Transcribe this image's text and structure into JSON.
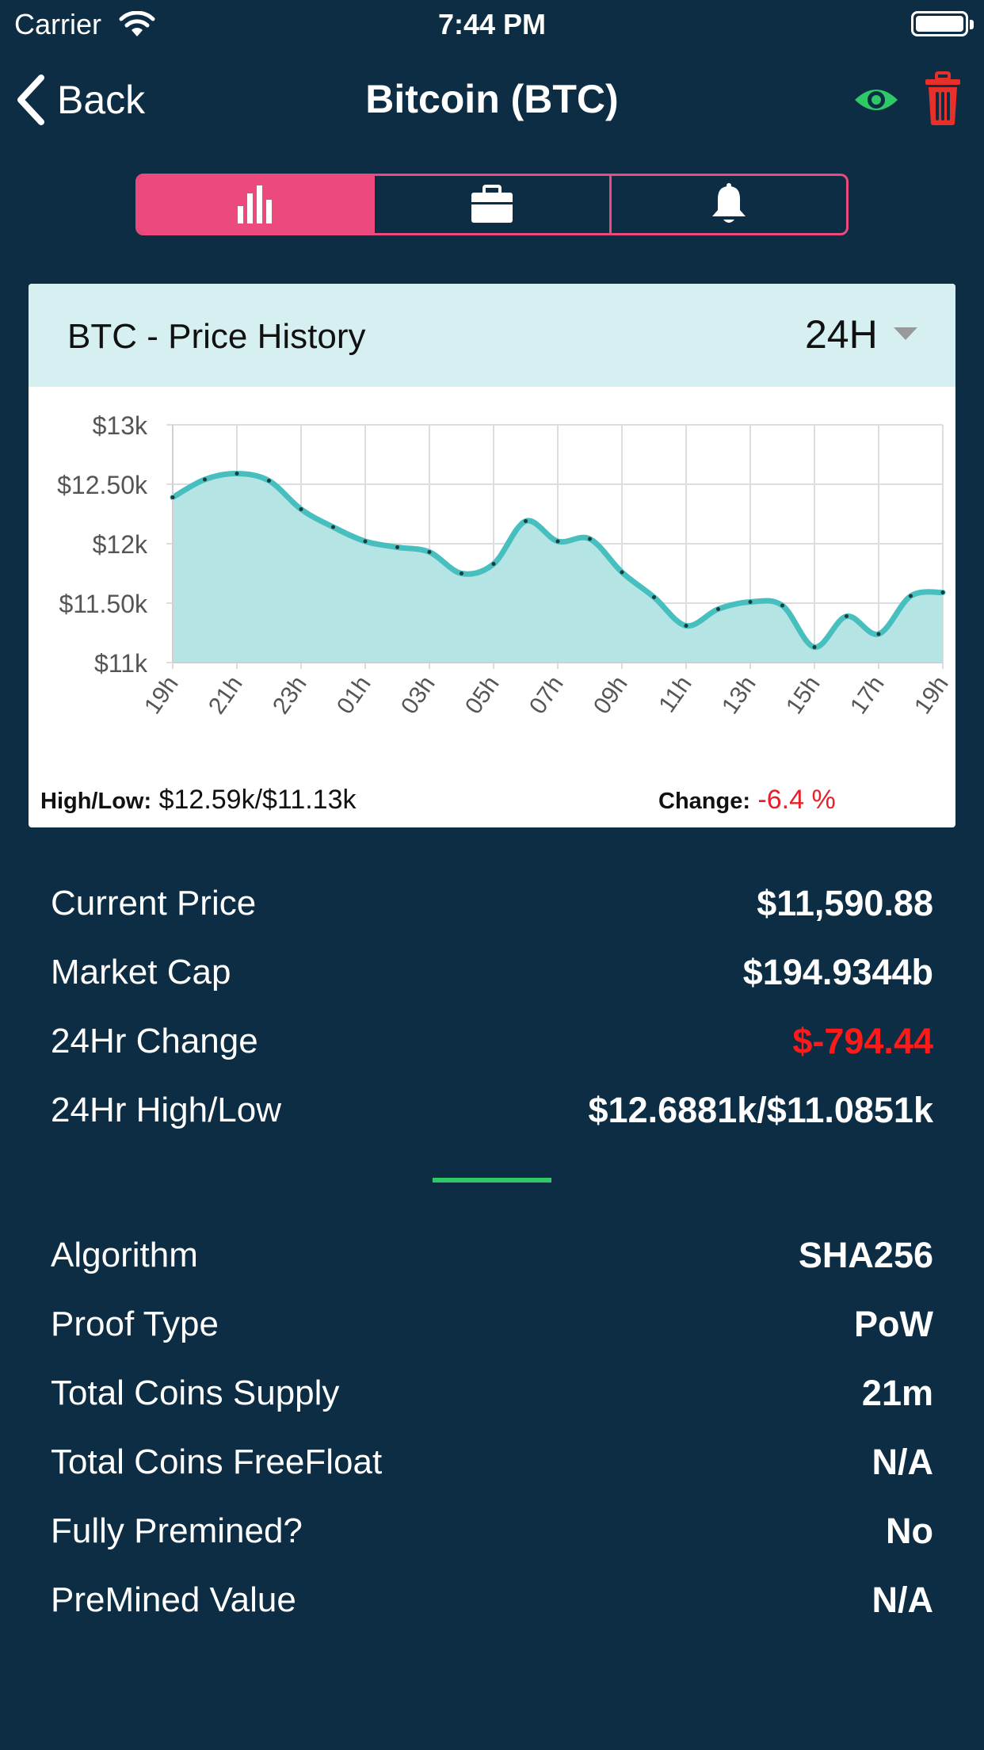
{
  "status_bar": {
    "carrier": "Carrier",
    "time": "7:44 PM"
  },
  "nav": {
    "back_label": "Back",
    "title": "Bitcoin (BTC)",
    "icons": [
      "chevron-left-icon",
      "eye-icon",
      "trash-icon"
    ]
  },
  "segments": [
    {
      "icon": "bar-chart-icon",
      "active": true
    },
    {
      "icon": "briefcase-icon",
      "active": false
    },
    {
      "icon": "bell-icon",
      "active": false
    }
  ],
  "colors": {
    "background": "#0c2d43",
    "accent": "#ec4a7c",
    "chart_line": "#47bfbf",
    "chart_fill": "#b5e4e4",
    "negative": "#ff1a1a",
    "watch": "#2ec866",
    "delete": "#e8302a"
  },
  "chart_card": {
    "title": "BTC - Price History",
    "range": "24H",
    "high_low_label": "High/Low:",
    "high_low_value": "$12.59k/$11.13k",
    "change_label": "Change:",
    "change_value": "-6.4 %"
  },
  "chart_data": {
    "type": "area",
    "ylim": [
      11000,
      13000
    ],
    "y_ticks": [
      {
        "value": 13000,
        "label": "$13k"
      },
      {
        "value": 12500,
        "label": "$12.50k"
      },
      {
        "value": 12000,
        "label": "$12k"
      },
      {
        "value": 11500,
        "label": "$11.50k"
      },
      {
        "value": 11000,
        "label": "$11k"
      }
    ],
    "x_ticks": [
      "19h",
      "21h",
      "23h",
      "01h",
      "03h",
      "05h",
      "07h",
      "09h",
      "11h",
      "13h",
      "15h",
      "17h",
      "19h"
    ],
    "x_count": 25,
    "values": [
      12390,
      12540,
      12590,
      12530,
      12290,
      12140,
      12020,
      11970,
      11930,
      11750,
      11830,
      12190,
      12020,
      12040,
      11760,
      11550,
      11310,
      11450,
      11510,
      11480,
      11130,
      11390,
      11240,
      11560,
      11590
    ],
    "grid": true
  },
  "stats": [
    {
      "label": "Current Price",
      "value": "$11,590.88",
      "negative": false
    },
    {
      "label": "Market Cap",
      "value": "$194.9344b",
      "negative": false
    },
    {
      "label": "24Hr Change",
      "value": "$-794.44",
      "negative": true
    },
    {
      "label": "24Hr High/Low",
      "value": "$12.6881k/$11.0851k",
      "negative": false
    }
  ],
  "info": [
    {
      "label": "Algorithm",
      "value": "SHA256"
    },
    {
      "label": "Proof Type",
      "value": "PoW"
    },
    {
      "label": "Total Coins Supply",
      "value": "21m"
    },
    {
      "label": "Total Coins FreeFloat",
      "value": "N/A"
    },
    {
      "label": "Fully Premined?",
      "value": "No"
    },
    {
      "label": "PreMined Value",
      "value": "N/A"
    }
  ]
}
